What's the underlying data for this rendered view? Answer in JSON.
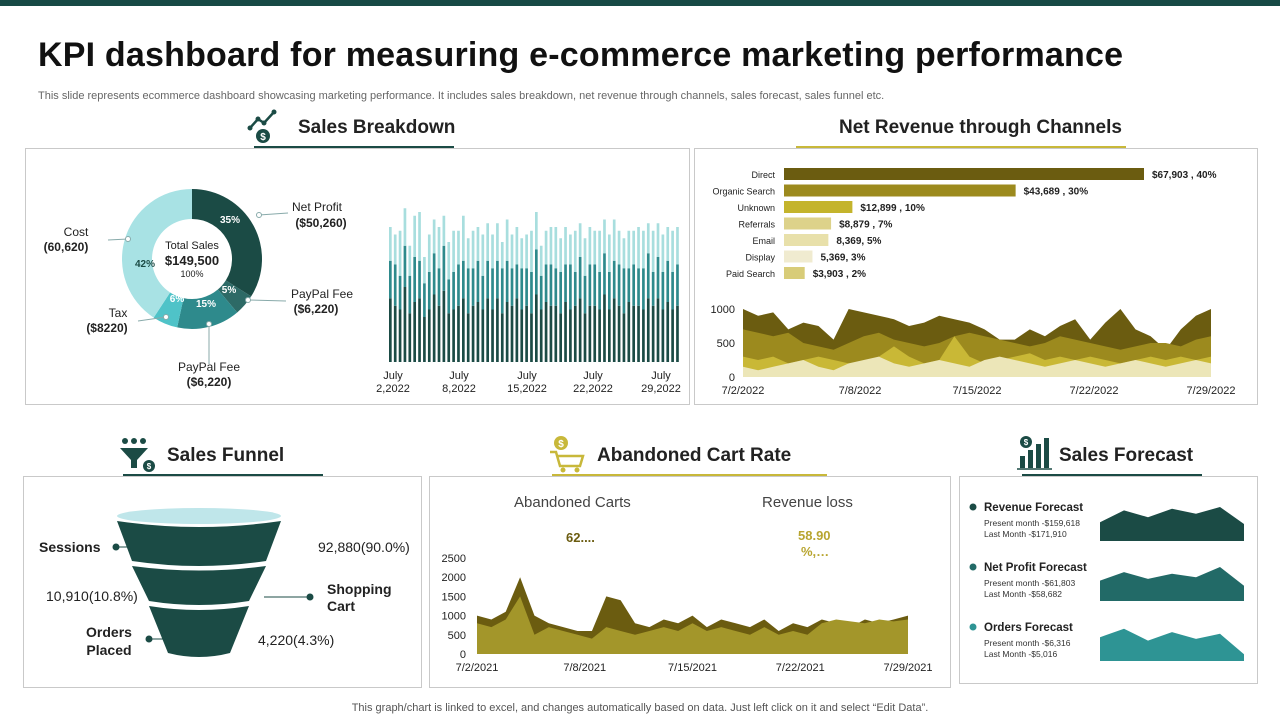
{
  "page": {
    "title": "KPI dashboard for measuring e-commerce marketing performance",
    "subtitle": "This slide represents ecommerce dashboard showcasing marketing performance. It includes sales breakdown, net revenue through channels, sales forecast, sales funnel etc.",
    "footer": "This graph/chart is linked to excel,  and changes automatically based on data. Just left click on it and select “Edit Data”.",
    "colors": {
      "dark_teal": "#1b4b45",
      "teal": "#2e7f83",
      "light_teal": "#a8dede",
      "olive": "#6b5c10",
      "gold": "#c8b83a"
    }
  },
  "sections": {
    "sales_breakdown": "Sales Breakdown",
    "net_revenue": "Net Revenue through Channels",
    "sales_funnel": "Sales Funnel",
    "abandoned_cart": "Abandoned Cart Rate",
    "sales_forecast": "Sales Forecast"
  },
  "donut_labels": {
    "center_title": "Total Sales",
    "center_value": "$149,500",
    "center_pct": "100%",
    "cost_name": "Cost",
    "cost_value": "(60,620)",
    "net_profit_name": "Net Profit",
    "net_profit_value": "($50,260)",
    "paypal_fee_name": "PayPal Fee",
    "paypal_fee_value": "($6,220)",
    "tax_name": "Tax",
    "tax_value": "($8220)",
    "paypal_fee2_name": "PayPal Fee",
    "paypal_fee2_value": "($6,220)",
    "seg_35": "35%",
    "seg_42": "42%",
    "seg_5": "5%",
    "seg_15": "15%",
    "seg_6": "6%"
  },
  "funnel": {
    "sessions_label": "Sessions",
    "sessions_value": "92,880(90.0%)",
    "cart_label_line1": "Shopping",
    "cart_label_line2": "Cart",
    "cart_value": "10,910(10.8%)",
    "orders_label_line1": "Orders",
    "orders_label_line2": "Placed",
    "orders_value": "4,220(4.3%)"
  },
  "abandoned": {
    "carts_title": "Abandoned Carts",
    "carts_value": "62....",
    "revenue_title": "Revenue loss",
    "revenue_value_line1": "58.90",
    "revenue_value_line2": "%,…"
  },
  "forecast": {
    "items": [
      {
        "title": "Revenue Forecast",
        "present": "Present month -$159,618",
        "last": "Last Month  -$171,910",
        "color": "#1b4b45"
      },
      {
        "title": "Net Profit Forecast",
        "present": "Present month -$61,803",
        "last": "Last Month  -$58,682",
        "color": "#226a67"
      },
      {
        "title": "Orders Forecast",
        "present": "Present month -$6,316",
        "last": "Last Month  -$5,016",
        "color": "#2e9494"
      }
    ]
  },
  "chart_data": [
    {
      "id": "sales_breakdown_donut",
      "type": "pie",
      "title": "Sales Breakdown",
      "categories": [
        "Net Profit",
        "PayPal Fee",
        "PayPal Fee",
        "Tax",
        "Cost"
      ],
      "values": [
        35,
        5,
        15,
        6,
        42
      ],
      "colors": [
        "#1b4b45",
        "#2d6a66",
        "#2e8a8c",
        "#4fc3c8",
        "#a8e2e4"
      ]
    },
    {
      "id": "sales_breakdown_bars",
      "type": "bar",
      "stacked": true,
      "x_tick_labels": [
        [
          "July",
          "2,2022"
        ],
        [
          "July",
          "8,2022"
        ],
        [
          "July",
          "15,2022"
        ],
        [
          "July",
          "22,2022"
        ],
        [
          "July",
          "29,2022"
        ]
      ],
      "series": [
        {
          "name": "base",
          "color": "#1b4b45",
          "values": [
            34,
            30,
            28,
            40,
            26,
            32,
            34,
            24,
            28,
            36,
            30,
            38,
            26,
            28,
            30,
            34,
            26,
            30,
            32,
            28,
            34,
            28,
            34,
            26,
            32,
            30,
            34,
            28,
            30,
            26,
            36,
            28,
            32,
            30,
            30,
            26,
            32,
            28,
            30,
            34,
            26,
            30,
            30,
            28,
            36,
            28,
            34,
            30,
            26,
            32,
            30,
            30,
            28,
            34,
            30,
            34,
            28,
            32,
            28,
            30
          ]
        },
        {
          "name": "mid",
          "color": "#2e8a8c",
          "values": [
            20,
            22,
            18,
            22,
            20,
            24,
            20,
            18,
            20,
            22,
            20,
            24,
            18,
            20,
            22,
            20,
            24,
            20,
            22,
            18,
            20,
            22,
            20,
            24,
            22,
            20,
            18,
            22,
            20,
            22,
            24,
            18,
            20,
            22,
            20,
            22,
            20,
            24,
            18,
            22,
            20,
            22,
            22,
            20,
            22,
            20,
            20,
            22,
            24,
            18,
            22,
            20,
            22,
            24,
            18,
            22,
            20,
            22,
            20,
            22
          ]
        },
        {
          "name": "top",
          "color": "#a8dede",
          "values": [
            18,
            16,
            24,
            20,
            16,
            22,
            26,
            14,
            20,
            18,
            22,
            16,
            20,
            22,
            18,
            24,
            16,
            20,
            18,
            22,
            20,
            18,
            20,
            14,
            22,
            18,
            20,
            16,
            18,
            22,
            20,
            16,
            18,
            20,
            22,
            18,
            20,
            16,
            22,
            18,
            20,
            20,
            18,
            22,
            18,
            20,
            22,
            18,
            16,
            20,
            18,
            22,
            20,
            16,
            22,
            18,
            20,
            18,
            22,
            20
          ]
        }
      ]
    },
    {
      "id": "net_revenue_channels",
      "type": "bar",
      "orientation": "horizontal",
      "title": "Net Revenue through Channels",
      "categories": [
        "Direct",
        "Organic Search",
        "Unknown",
        "Referrals",
        "Email",
        "Display",
        "Paid Search"
      ],
      "values": [
        67903,
        43689,
        12899,
        8879,
        8369,
        5369,
        3903
      ],
      "data_labels": [
        "$67,903 , 40%",
        "$43,689 , 30%",
        "$12,899 , 10%",
        "$8,879 , 7%",
        "8,369, 5%",
        "5,369, 3%",
        "$3,903 , 2%"
      ],
      "colors": [
        "#6b5c10",
        "#9c8a1e",
        "#c4b42c",
        "#ddd28a",
        "#e8e0aa",
        "#f0ebd0",
        "#d8cc78"
      ]
    },
    {
      "id": "net_revenue_area",
      "type": "area",
      "x_labels": [
        "7/2/2022",
        "7/8/2022",
        "7/15/2022",
        "7/22/2022",
        "7/29/2022"
      ],
      "ylim": [
        0,
        1000
      ],
      "y_ticks": [
        0,
        500,
        1000
      ],
      "series": [
        {
          "name": "s1",
          "color": "#6b5c10",
          "values": [
            1000,
            900,
            950,
            700,
            800,
            750,
            550,
            1000,
            950,
            900,
            850,
            750,
            800,
            900,
            850,
            800,
            700,
            550,
            550,
            700,
            600,
            750,
            850,
            550,
            800,
            1000,
            700,
            600,
            400,
            700,
            900,
            1000
          ]
        },
        {
          "name": "s2",
          "color": "#9c8a1e",
          "values": [
            700,
            650,
            600,
            650,
            500,
            450,
            400,
            500,
            600,
            650,
            550,
            500,
            450,
            500,
            600,
            650,
            600,
            550,
            500,
            450,
            500,
            600,
            550,
            500,
            450,
            400,
            450,
            500,
            500,
            450,
            550,
            600
          ]
        },
        {
          "name": "s3",
          "color": "#c9b836",
          "values": [
            300,
            250,
            300,
            200,
            250,
            300,
            250,
            200,
            150,
            300,
            450,
            300,
            200,
            250,
            600,
            300,
            200,
            250,
            300,
            350,
            250,
            300,
            250,
            300,
            250,
            200,
            250,
            300,
            250,
            300,
            250,
            300
          ]
        },
        {
          "name": "s4",
          "color": "#ece6b8",
          "values": [
            150,
            100,
            150,
            200,
            250,
            150,
            100,
            200,
            250,
            300,
            200,
            150,
            200,
            250,
            200,
            150,
            250,
            300,
            250,
            200,
            150,
            200,
            250,
            200,
            150,
            200,
            250,
            200,
            150,
            200,
            250,
            200
          ]
        }
      ]
    },
    {
      "id": "abandoned_cart_area",
      "type": "area",
      "x_labels": [
        "7/2/2021",
        "7/8/2021",
        "7/15/2021",
        "7/22/2021",
        "7/29/2021"
      ],
      "ylim": [
        0,
        2500
      ],
      "y_ticks": [
        0,
        500,
        1000,
        1500,
        2000,
        2500
      ],
      "series": [
        {
          "name": "Abandoned Carts",
          "color": "#6b5c10",
          "values": [
            1000,
            900,
            1100,
            2000,
            1000,
            800,
            700,
            600,
            600,
            1500,
            1400,
            800,
            700,
            900,
            800,
            1000,
            700,
            900,
            800,
            700,
            900,
            600,
            800,
            700,
            900,
            800,
            700,
            900,
            800,
            900,
            1000
          ]
        },
        {
          "name": "Revenue loss",
          "color": "#a3962a",
          "values": [
            800,
            700,
            900,
            1500,
            500,
            700,
            600,
            500,
            400,
            700,
            600,
            500,
            600,
            700,
            600,
            800,
            600,
            700,
            600,
            500,
            700,
            500,
            600,
            500,
            800,
            900,
            850,
            800,
            900,
            850,
            900
          ]
        }
      ]
    },
    {
      "id": "sales_forecast_areas",
      "type": "area",
      "series": [
        {
          "name": "Revenue Forecast",
          "color": "#1b4b45",
          "values": [
            0.55,
            0.9,
            0.7,
            0.95,
            0.8,
            1.0,
            0.5
          ]
        },
        {
          "name": "Net Profit Forecast",
          "color": "#226a67",
          "values": [
            0.6,
            0.85,
            0.65,
            0.8,
            0.7,
            1.0,
            0.45
          ]
        },
        {
          "name": "Orders Forecast",
          "color": "#2e9494",
          "values": [
            0.7,
            0.95,
            0.6,
            0.85,
            0.65,
            0.8,
            0.2
          ]
        }
      ]
    }
  ]
}
